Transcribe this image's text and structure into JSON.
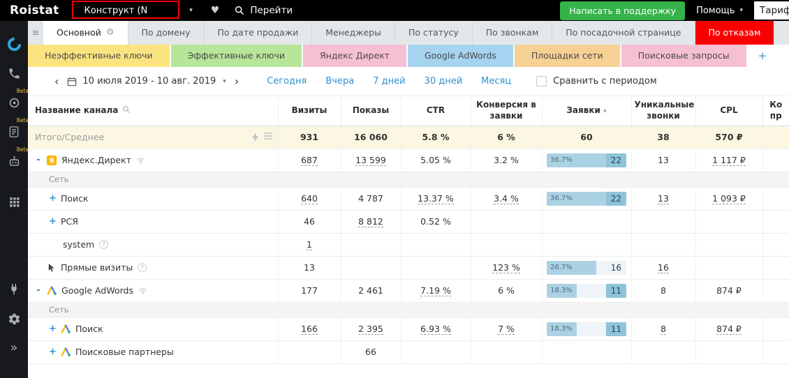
{
  "topbar": {
    "logo": "Roistat",
    "project": "Конструкт  (N",
    "go": "Перейти",
    "support": "Написать в поддержку",
    "help": "Помощь",
    "tariff": "Тариф"
  },
  "sidebar": {
    "beta_label": "Beta",
    "items": [
      {
        "name": "roistat-analytics-icon"
      },
      {
        "name": "phone-icon"
      },
      {
        "name": "target-icon",
        "beta": true
      },
      {
        "name": "document-icon",
        "beta": true
      },
      {
        "name": "robot-icon",
        "beta": true
      },
      {
        "name": "apps-grid-icon",
        "gap": 16
      },
      {
        "name": "plug-icon",
        "gap": 84
      },
      {
        "name": "gear-icon"
      },
      {
        "name": "expand-sidebar-icon"
      }
    ]
  },
  "report_tabs": [
    {
      "label": "Основной",
      "active": true
    },
    {
      "label": "По домену"
    },
    {
      "label": "По дате продажи"
    },
    {
      "label": "Менеджеры"
    },
    {
      "label": "По статусу"
    },
    {
      "label": "По звонкам"
    },
    {
      "label": "По посадочной странице"
    },
    {
      "label": "По отказам",
      "highlight": true
    }
  ],
  "filter_tabs": [
    {
      "label": "Неэффективные ключи",
      "color": "#fbe47f"
    },
    {
      "label": "Эффективные ключи",
      "color": "#b7e59a"
    },
    {
      "label": "Яндекс Директ",
      "color": "#f6c0d4"
    },
    {
      "label": "Google AdWords",
      "color": "#a6d3ef"
    },
    {
      "label": "Площадки сети",
      "color": "#f7d094"
    },
    {
      "label": "Поисковые запросы",
      "color": "#f6c0d4"
    },
    {
      "label": "+",
      "color": "#ffffff",
      "add": true
    }
  ],
  "period": {
    "range": "10 июля 2019 - 10 авг. 2019",
    "presets": [
      "Сегодня",
      "Вчера",
      "7 дней",
      "30 дней",
      "Месяц"
    ],
    "compare_label": "Сравнить с периодом"
  },
  "table": {
    "columns": [
      {
        "label": "Название канала",
        "search": true
      },
      {
        "label": "Визиты"
      },
      {
        "label": "Показы"
      },
      {
        "label": "CTR"
      },
      {
        "label": "Конверсия в заявки"
      },
      {
        "label": "Заявки",
        "sort": "desc"
      },
      {
        "label": "Уникальные звонки"
      },
      {
        "label": "CPL"
      },
      {
        "label": "Ко пр"
      }
    ],
    "rows": [
      {
        "type": "total",
        "name": "Итого/Среднее",
        "visits": "931",
        "shows": "16 060",
        "ctr": "5.8 %",
        "conv": "6 %",
        "leads": "60",
        "calls": "38",
        "cpl": "570 ₽"
      },
      {
        "type": "channel",
        "name": "Яндекс.Директ",
        "icon": "yandex-direct-icon",
        "collapse": true,
        "signal": true,
        "visits": {
          "t": "687",
          "u": true
        },
        "shows": {
          "t": "13 599",
          "u": true
        },
        "ctr": "5.05 %",
        "conv": "3.2 %",
        "leads": {
          "pct": "36.7%",
          "n": "22",
          "fill": 100,
          "chip": true
        },
        "calls": "13",
        "cpl": {
          "t": "1 117 ₽",
          "u": true
        }
      },
      {
        "type": "group",
        "name": "Сеть"
      },
      {
        "type": "sub",
        "name": "Поиск",
        "visits": {
          "t": "640",
          "u": true
        },
        "shows": "4 787",
        "ctr": {
          "t": "13.37 %",
          "u": true
        },
        "conv": {
          "t": "3.4 %",
          "u": true
        },
        "leads": {
          "pct": "36.7%",
          "n": "22",
          "fill": 100,
          "chip": true
        },
        "calls": {
          "t": "13",
          "u": true
        },
        "cpl": {
          "t": "1 093 ₽",
          "u": true
        }
      },
      {
        "type": "sub",
        "name": "РСЯ",
        "visits": "46",
        "shows": {
          "t": "8 812",
          "u": true
        },
        "ctr": "0.52 %"
      },
      {
        "type": "sub2",
        "name": "system",
        "help": true,
        "visits": {
          "t": "1",
          "u": true
        }
      },
      {
        "type": "channel",
        "name": "Прямые визиты",
        "icon": "cursor-icon",
        "help": true,
        "visits": "13",
        "conv": {
          "t": "123 %",
          "u": true
        },
        "leads": {
          "pct": "26.7%",
          "n": "16",
          "fill": 62,
          "chip": false
        },
        "calls": {
          "t": "16",
          "u": true
        }
      },
      {
        "type": "channel",
        "name": "Google AdWords",
        "icon": "google-ads-icon",
        "collapse": true,
        "signal": true,
        "visits": "177",
        "shows": "2 461",
        "ctr": {
          "t": "7.19 %",
          "u": true
        },
        "conv": "6 %",
        "leads": {
          "pct": "18.3%",
          "n": "11",
          "fill": 38,
          "chip": true
        },
        "calls": "8",
        "cpl": "874 ₽"
      },
      {
        "type": "group",
        "name": "Сеть"
      },
      {
        "type": "sub",
        "name": "Поиск",
        "icon": "google-ads-icon",
        "visits": {
          "t": "166",
          "u": true
        },
        "shows": {
          "t": "2 395",
          "u": true
        },
        "ctr": {
          "t": "6.93 %",
          "u": true
        },
        "conv": {
          "t": "7 %",
          "u": true
        },
        "leads": {
          "pct": "18.3%",
          "n": "11",
          "fill": 38,
          "chip": true
        },
        "calls": {
          "t": "8",
          "u": true
        },
        "cpl": {
          "t": "874 ₽",
          "u": true
        }
      },
      {
        "type": "sub",
        "name": "Поисковые партнеры",
        "icon": "google-ads-icon",
        "shows": "66"
      }
    ]
  }
}
